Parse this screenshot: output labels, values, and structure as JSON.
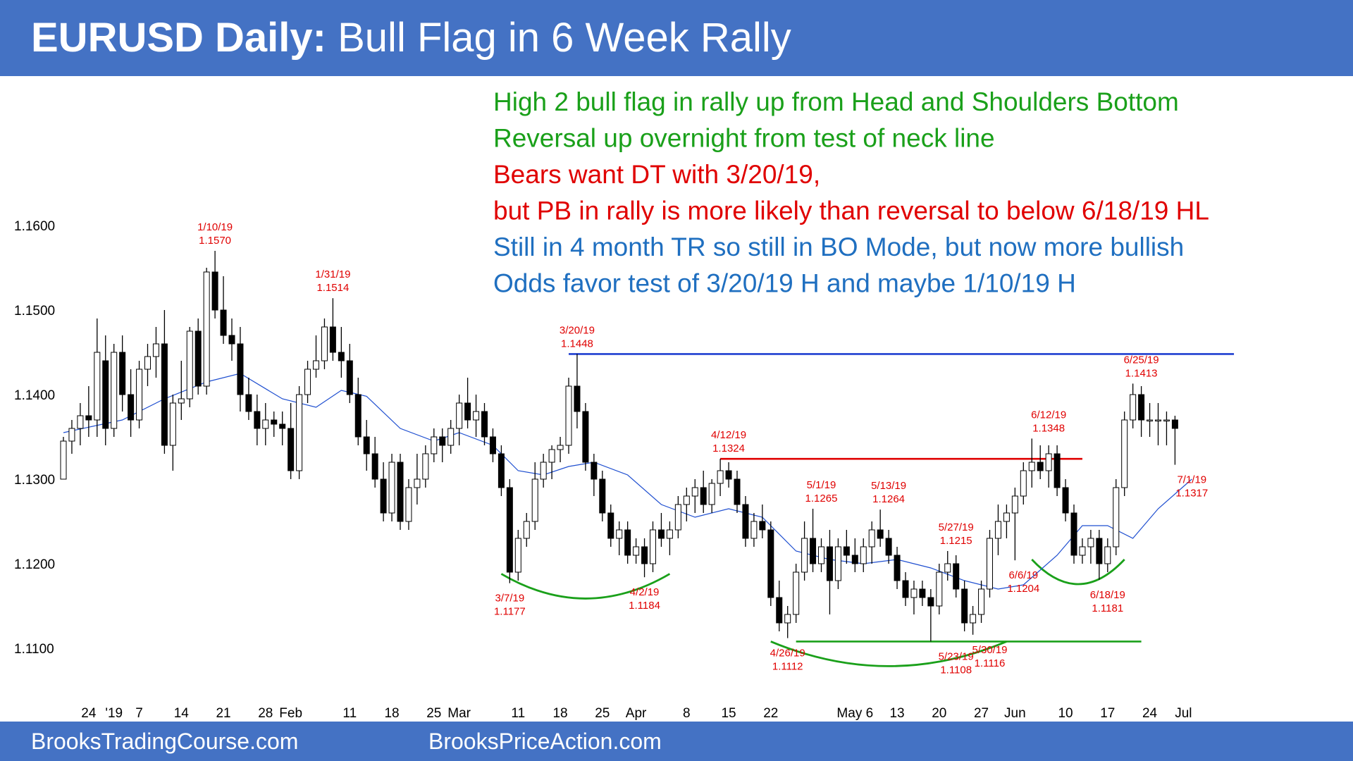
{
  "title": {
    "bold": "EURUSD Daily:",
    "rest": "Bull Flag in 6 Week Rally"
  },
  "footer": {
    "left": "BrooksTradingCourse.com",
    "right": "BrooksPriceAction.com"
  },
  "notes": [
    {
      "text": "High 2 bull flag in rally up from Head and Shoulders Bottom",
      "color": "#1aa01a"
    },
    {
      "text": "Reversal up overnight from test of neck line",
      "color": "#1aa01a"
    },
    {
      "text": "Bears want DT with 3/20/19,",
      "color": "#e00000"
    },
    {
      "text": "but PB in rally is more likely than reversal to below 6/18/19 HL",
      "color": "#e00000"
    },
    {
      "text": "Still in 4 month TR so still in BO Mode, but now more bullish",
      "color": "#1f6fc0"
    },
    {
      "text": "Odds favor test of 3/20/19 H and maybe 1/10/19 H",
      "color": "#1f6fc0"
    }
  ],
  "colors": {
    "bar": "#4472c4",
    "bull_candle": "#ffffff",
    "bear_candle": "#000000",
    "ema": "#1f4fd0",
    "resistance_high": "#1f3fd0",
    "resistance_neck": "#e00000",
    "support": "#1aa01a"
  },
  "chart_data": {
    "type": "candlestick",
    "title": "EURUSD Daily: Bull Flag in 6 Week Rally",
    "ylim": [
      1.105,
      1.165
    ],
    "y_ticks": [
      "1.1100",
      "1.1200",
      "1.1300",
      "1.1400",
      "1.1500",
      "1.1600"
    ],
    "x_ticks": [
      {
        "label": "24",
        "bar": 3
      },
      {
        "label": "'19",
        "bar": 6
      },
      {
        "label": "7",
        "bar": 9
      },
      {
        "label": "14",
        "bar": 14
      },
      {
        "label": "21",
        "bar": 19
      },
      {
        "label": "28",
        "bar": 24
      },
      {
        "label": "Feb",
        "bar": 27
      },
      {
        "label": "11",
        "bar": 34
      },
      {
        "label": "18",
        "bar": 39
      },
      {
        "label": "25",
        "bar": 44
      },
      {
        "label": "Mar",
        "bar": 47
      },
      {
        "label": "11",
        "bar": 54
      },
      {
        "label": "18",
        "bar": 59
      },
      {
        "label": "25",
        "bar": 64
      },
      {
        "label": "Apr",
        "bar": 68
      },
      {
        "label": "8",
        "bar": 74
      },
      {
        "label": "15",
        "bar": 79
      },
      {
        "label": "22",
        "bar": 84
      },
      {
        "label": "May 6",
        "bar": 94
      },
      {
        "label": "13",
        "bar": 99
      },
      {
        "label": "20",
        "bar": 104
      },
      {
        "label": "27",
        "bar": 109
      },
      {
        "label": "Jun",
        "bar": 113
      },
      {
        "label": "10",
        "bar": 119
      },
      {
        "label": "17",
        "bar": 124
      },
      {
        "label": "24",
        "bar": 129
      },
      {
        "label": "Jul",
        "bar": 133
      }
    ],
    "ohlc": [
      [
        1.13,
        1.135,
        1.13,
        1.1345
      ],
      [
        1.1345,
        1.137,
        1.133,
        1.136
      ],
      [
        1.136,
        1.139,
        1.134,
        1.1375
      ],
      [
        1.1375,
        1.141,
        1.135,
        1.137
      ],
      [
        1.137,
        1.149,
        1.135,
        1.145
      ],
      [
        1.144,
        1.147,
        1.134,
        1.136
      ],
      [
        1.136,
        1.146,
        1.135,
        1.145
      ],
      [
        1.145,
        1.147,
        1.138,
        1.14
      ],
      [
        1.14,
        1.143,
        1.135,
        1.137
      ],
      [
        1.137,
        1.144,
        1.136,
        1.143
      ],
      [
        1.143,
        1.146,
        1.141,
        1.1445
      ],
      [
        1.1445,
        1.148,
        1.142,
        1.146
      ],
      [
        1.146,
        1.15,
        1.133,
        1.134
      ],
      [
        1.134,
        1.14,
        1.131,
        1.139
      ],
      [
        1.139,
        1.144,
        1.137,
        1.1395
      ],
      [
        1.1395,
        1.148,
        1.1385,
        1.1475
      ],
      [
        1.1475,
        1.149,
        1.14,
        1.141
      ],
      [
        1.141,
        1.155,
        1.14,
        1.1545
      ],
      [
        1.1545,
        1.157,
        1.149,
        1.15
      ],
      [
        1.15,
        1.154,
        1.146,
        1.147
      ],
      [
        1.147,
        1.149,
        1.144,
        1.146
      ],
      [
        1.146,
        1.148,
        1.138,
        1.14
      ],
      [
        1.14,
        1.142,
        1.137,
        1.138
      ],
      [
        1.138,
        1.14,
        1.134,
        1.136
      ],
      [
        1.136,
        1.139,
        1.134,
        1.137
      ],
      [
        1.137,
        1.138,
        1.135,
        1.1365
      ],
      [
        1.1365,
        1.138,
        1.134,
        1.136
      ],
      [
        1.136,
        1.139,
        1.13,
        1.131
      ],
      [
        1.131,
        1.141,
        1.13,
        1.14
      ],
      [
        1.14,
        1.144,
        1.139,
        1.143
      ],
      [
        1.143,
        1.147,
        1.142,
        1.144
      ],
      [
        1.144,
        1.149,
        1.143,
        1.148
      ],
      [
        1.148,
        1.1514,
        1.144,
        1.145
      ],
      [
        1.145,
        1.148,
        1.142,
        1.144
      ],
      [
        1.144,
        1.146,
        1.139,
        1.14
      ],
      [
        1.14,
        1.142,
        1.134,
        1.135
      ],
      [
        1.135,
        1.137,
        1.131,
        1.133
      ],
      [
        1.133,
        1.135,
        1.129,
        1.13
      ],
      [
        1.13,
        1.132,
        1.125,
        1.126
      ],
      [
        1.126,
        1.133,
        1.125,
        1.132
      ],
      [
        1.132,
        1.133,
        1.124,
        1.125
      ],
      [
        1.125,
        1.13,
        1.124,
        1.129
      ],
      [
        1.129,
        1.133,
        1.127,
        1.13
      ],
      [
        1.13,
        1.134,
        1.129,
        1.133
      ],
      [
        1.133,
        1.136,
        1.132,
        1.135
      ],
      [
        1.135,
        1.136,
        1.132,
        1.134
      ],
      [
        1.134,
        1.137,
        1.133,
        1.136
      ],
      [
        1.136,
        1.14,
        1.134,
        1.139
      ],
      [
        1.139,
        1.142,
        1.136,
        1.137
      ],
      [
        1.137,
        1.14,
        1.135,
        1.138
      ],
      [
        1.138,
        1.139,
        1.134,
        1.135
      ],
      [
        1.135,
        1.136,
        1.132,
        1.133
      ],
      [
        1.133,
        1.134,
        1.128,
        1.129
      ],
      [
        1.129,
        1.13,
        1.1177,
        1.119
      ],
      [
        1.119,
        1.124,
        1.118,
        1.123
      ],
      [
        1.123,
        1.126,
        1.122,
        1.125
      ],
      [
        1.125,
        1.132,
        1.124,
        1.13
      ],
      [
        1.13,
        1.133,
        1.129,
        1.132
      ],
      [
        1.132,
        1.134,
        1.13,
        1.1335
      ],
      [
        1.1335,
        1.135,
        1.132,
        1.134
      ],
      [
        1.134,
        1.142,
        1.133,
        1.141
      ],
      [
        1.141,
        1.1448,
        1.136,
        1.138
      ],
      [
        1.138,
        1.139,
        1.131,
        1.132
      ],
      [
        1.132,
        1.133,
        1.128,
        1.13
      ],
      [
        1.13,
        1.131,
        1.125,
        1.126
      ],
      [
        1.126,
        1.127,
        1.122,
        1.123
      ],
      [
        1.123,
        1.125,
        1.121,
        1.124
      ],
      [
        1.124,
        1.125,
        1.12,
        1.121
      ],
      [
        1.121,
        1.123,
        1.12,
        1.122
      ],
      [
        1.122,
        1.123,
        1.1184,
        1.12
      ],
      [
        1.12,
        1.125,
        1.119,
        1.124
      ],
      [
        1.124,
        1.126,
        1.122,
        1.123
      ],
      [
        1.123,
        1.125,
        1.121,
        1.124
      ],
      [
        1.124,
        1.128,
        1.123,
        1.127
      ],
      [
        1.127,
        1.129,
        1.125,
        1.128
      ],
      [
        1.128,
        1.13,
        1.126,
        1.129
      ],
      [
        1.129,
        1.131,
        1.126,
        1.127
      ],
      [
        1.127,
        1.13,
        1.126,
        1.1295
      ],
      [
        1.1295,
        1.1324,
        1.128,
        1.131
      ],
      [
        1.131,
        1.132,
        1.129,
        1.13
      ],
      [
        1.13,
        1.131,
        1.126,
        1.127
      ],
      [
        1.127,
        1.128,
        1.122,
        1.123
      ],
      [
        1.123,
        1.126,
        1.122,
        1.125
      ],
      [
        1.125,
        1.127,
        1.123,
        1.124
      ],
      [
        1.124,
        1.125,
        1.115,
        1.116
      ],
      [
        1.116,
        1.118,
        1.112,
        1.113
      ],
      [
        1.113,
        1.115,
        1.1112,
        1.114
      ],
      [
        1.114,
        1.12,
        1.113,
        1.119
      ],
      [
        1.119,
        1.125,
        1.118,
        1.123
      ],
      [
        1.123,
        1.1265,
        1.119,
        1.12
      ],
      [
        1.12,
        1.123,
        1.119,
        1.122
      ],
      [
        1.122,
        1.124,
        1.114,
        1.118
      ],
      [
        1.118,
        1.123,
        1.117,
        1.122
      ],
      [
        1.122,
        1.124,
        1.12,
        1.121
      ],
      [
        1.121,
        1.123,
        1.119,
        1.12
      ],
      [
        1.12,
        1.123,
        1.119,
        1.122
      ],
      [
        1.122,
        1.125,
        1.12,
        1.124
      ],
      [
        1.124,
        1.1264,
        1.122,
        1.123
      ],
      [
        1.123,
        1.124,
        1.12,
        1.121
      ],
      [
        1.121,
        1.122,
        1.117,
        1.118
      ],
      [
        1.118,
        1.119,
        1.115,
        1.116
      ],
      [
        1.116,
        1.118,
        1.114,
        1.117
      ],
      [
        1.117,
        1.118,
        1.115,
        1.116
      ],
      [
        1.116,
        1.117,
        1.1108,
        1.115
      ],
      [
        1.115,
        1.12,
        1.114,
        1.119
      ],
      [
        1.119,
        1.1215,
        1.118,
        1.12
      ],
      [
        1.12,
        1.121,
        1.116,
        1.117
      ],
      [
        1.117,
        1.118,
        1.112,
        1.113
      ],
      [
        1.113,
        1.115,
        1.1116,
        1.114
      ],
      [
        1.114,
        1.118,
        1.113,
        1.117
      ],
      [
        1.117,
        1.124,
        1.116,
        1.123
      ],
      [
        1.123,
        1.127,
        1.121,
        1.125
      ],
      [
        1.125,
        1.127,
        1.123,
        1.126
      ],
      [
        1.126,
        1.129,
        1.1204,
        1.128
      ],
      [
        1.128,
        1.132,
        1.127,
        1.131
      ],
      [
        1.131,
        1.1348,
        1.129,
        1.132
      ],
      [
        1.132,
        1.134,
        1.13,
        1.131
      ],
      [
        1.131,
        1.134,
        1.129,
        1.133
      ],
      [
        1.133,
        1.134,
        1.128,
        1.129
      ],
      [
        1.129,
        1.13,
        1.125,
        1.126
      ],
      [
        1.126,
        1.127,
        1.12,
        1.121
      ],
      [
        1.121,
        1.123,
        1.12,
        1.122
      ],
      [
        1.122,
        1.124,
        1.12,
        1.123
      ],
      [
        1.123,
        1.124,
        1.1181,
        1.12
      ],
      [
        1.12,
        1.123,
        1.119,
        1.122
      ],
      [
        1.122,
        1.13,
        1.121,
        1.129
      ],
      [
        1.129,
        1.138,
        1.128,
        1.137
      ],
      [
        1.137,
        1.1413,
        1.136,
        1.14
      ],
      [
        1.14,
        1.141,
        1.135,
        1.137
      ],
      [
        1.137,
        1.139,
        1.135,
        1.137
      ],
      [
        1.137,
        1.139,
        1.134,
        1.137
      ],
      [
        1.137,
        1.138,
        1.134,
        1.137
      ],
      [
        1.137,
        1.1375,
        1.1317,
        1.136
      ]
    ],
    "ema20": [
      [
        0,
        1.1355
      ],
      [
        7,
        1.137
      ],
      [
        12,
        1.1395
      ],
      [
        17,
        1.1415
      ],
      [
        21,
        1.1425
      ],
      [
        26,
        1.1395
      ],
      [
        30,
        1.1385
      ],
      [
        33,
        1.1405
      ],
      [
        36,
        1.1398
      ],
      [
        40,
        1.136
      ],
      [
        44,
        1.1345
      ],
      [
        47,
        1.1355
      ],
      [
        51,
        1.134
      ],
      [
        54,
        1.131
      ],
      [
        57,
        1.1305
      ],
      [
        60,
        1.1315
      ],
      [
        63,
        1.132
      ],
      [
        67,
        1.1305
      ],
      [
        71,
        1.127
      ],
      [
        75,
        1.1255
      ],
      [
        79,
        1.1265
      ],
      [
        83,
        1.1255
      ],
      [
        87,
        1.1215
      ],
      [
        91,
        1.1205
      ],
      [
        95,
        1.12
      ],
      [
        99,
        1.1205
      ],
      [
        103,
        1.1195
      ],
      [
        107,
        1.118
      ],
      [
        111,
        1.117
      ],
      [
        114,
        1.1175
      ],
      [
        118,
        1.121
      ],
      [
        121,
        1.1245
      ],
      [
        124,
        1.1245
      ],
      [
        127,
        1.123
      ],
      [
        130,
        1.1265
      ],
      [
        134,
        1.13
      ]
    ],
    "lines": [
      {
        "name": "3/20/19 high",
        "y": 1.1448,
        "from_bar": 60,
        "to_bar": 139,
        "color_key": "resistance_high"
      },
      {
        "name": "neck line",
        "y": 1.1324,
        "from_bar": 78,
        "to_bar": 121,
        "color_key": "resistance_neck"
      },
      {
        "name": "support",
        "y": 1.1108,
        "from_bar": 87,
        "to_bar": 128,
        "color_key": "support"
      }
    ],
    "arcs": [
      {
        "name": "march-april-bottom",
        "from_bar": 52,
        "to_bar": 72,
        "depth": 1.1163
      },
      {
        "name": "head",
        "from_bar": 84,
        "to_bar": 112,
        "depth": 1.1083
      },
      {
        "name": "right-shoulder",
        "from_bar": 115,
        "to_bar": 126,
        "depth": 1.118
      }
    ],
    "annotations": [
      {
        "date": "1/10/19",
        "price": "1.1570",
        "bar": 18,
        "position": "above"
      },
      {
        "date": "1/31/19",
        "price": "1.1514",
        "bar": 32,
        "position": "above"
      },
      {
        "date": "3/20/19",
        "price": "1.1448",
        "bar": 61,
        "position": "above"
      },
      {
        "date": "4/12/19",
        "price": "1.1324",
        "bar": 79,
        "position": "above"
      },
      {
        "date": "5/1/19",
        "price": "1.1265",
        "bar": 90,
        "position": "above"
      },
      {
        "date": "5/13/19",
        "price": "1.1264",
        "bar": 98,
        "position": "above"
      },
      {
        "date": "5/27/19",
        "price": "1.1215",
        "bar": 106,
        "position": "above"
      },
      {
        "date": "6/12/19",
        "price": "1.1348",
        "bar": 117,
        "position": "above"
      },
      {
        "date": "6/25/19",
        "price": "1.1413",
        "bar": 128,
        "position": "above"
      },
      {
        "date": "3/7/19",
        "price": "1.1177",
        "bar": 53,
        "position": "below"
      },
      {
        "date": "4/2/19",
        "price": "1.1184",
        "bar": 69,
        "position": "below"
      },
      {
        "date": "4/26/19",
        "price": "1.1112",
        "bar": 86,
        "position": "below"
      },
      {
        "date": "5/23/19",
        "price": "1.1108",
        "bar": 106,
        "position": "below"
      },
      {
        "date": "5/30/19",
        "price": "1.1116",
        "bar": 110,
        "position": "below"
      },
      {
        "date": "6/6/19",
        "price": "1.1204",
        "bar": 114,
        "position": "below"
      },
      {
        "date": "6/18/19",
        "price": "1.1181",
        "bar": 124,
        "position": "below"
      },
      {
        "date": "7/1/19",
        "price": "1.1317",
        "bar": 134,
        "position": "below"
      }
    ]
  }
}
